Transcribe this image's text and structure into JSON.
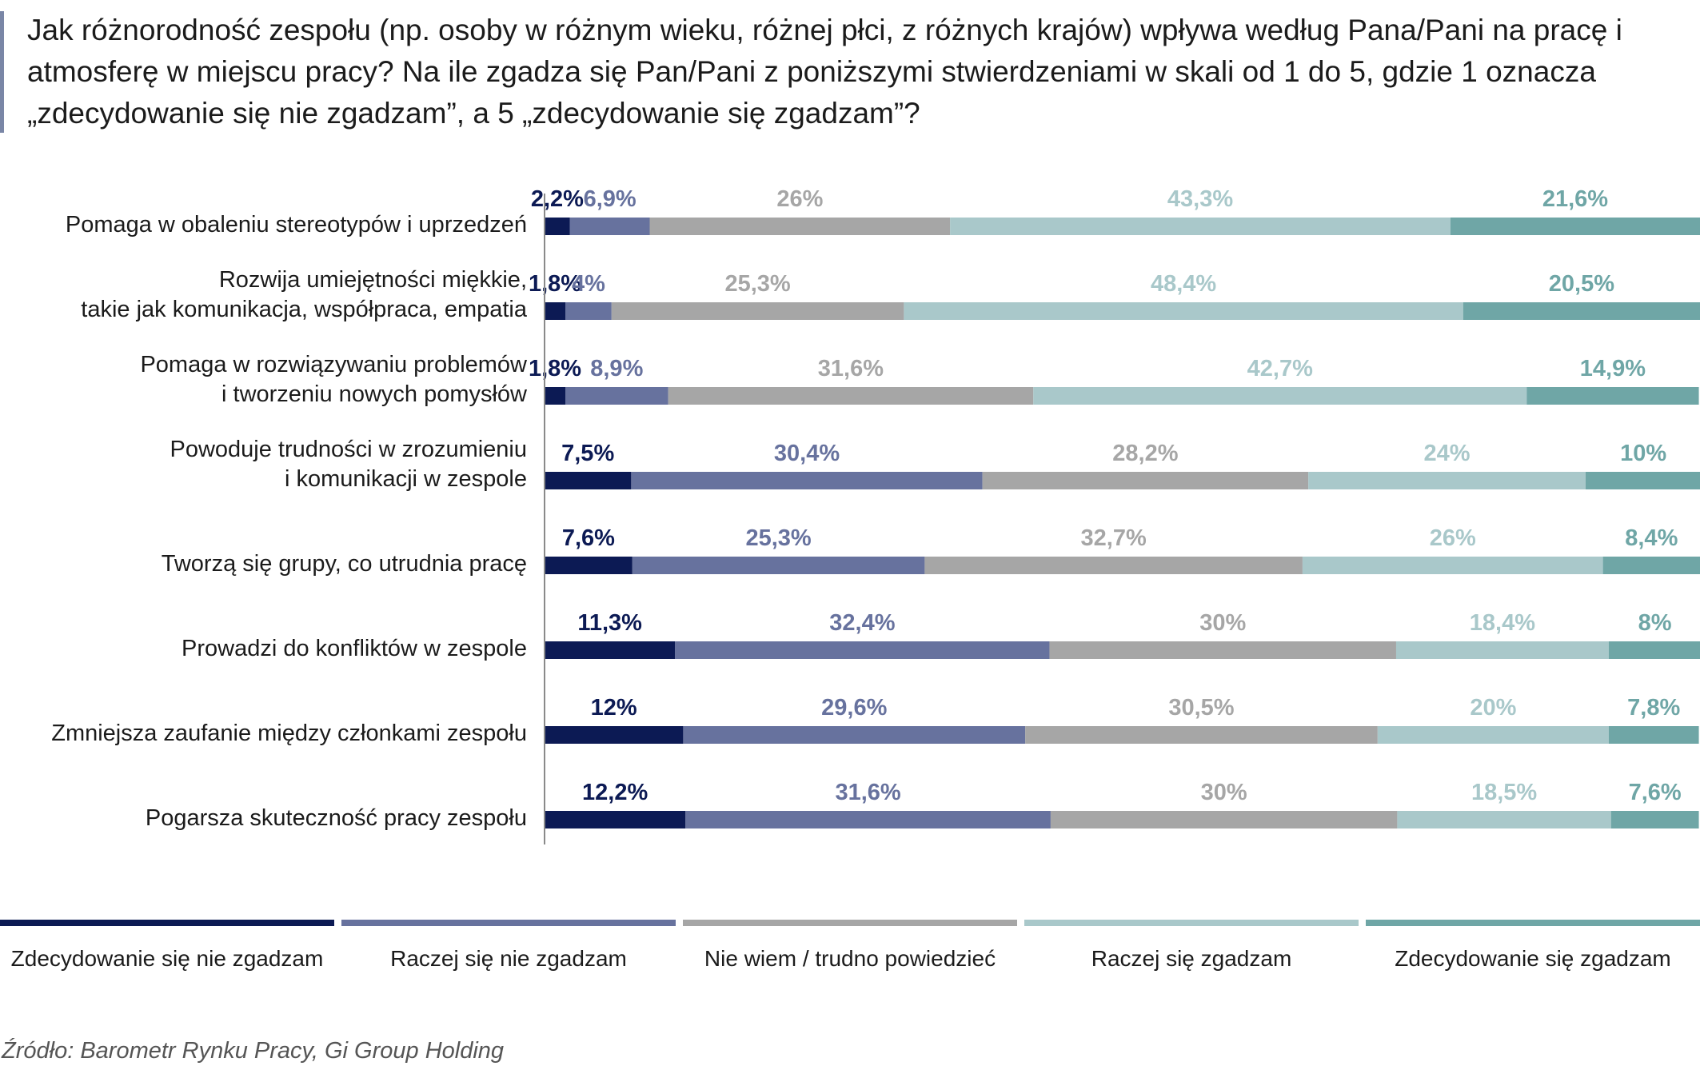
{
  "title": "Jak różnorodność zespołu (np. osoby w różnym wieku, różnej płci, z różnych krajów) wpływa według Pana/Pani na pracę i atmosferę w miejscu pracy? Na ile zgadza się Pan/Pani z poniższymi stwierdzeniami w skali od 1 do 5, gdzie 1 oznacza „zdecydowanie się nie zgadzam”, a 5 „zdecydowanie się zgadzam”?",
  "source": "Źródło: Barometr Rynku Pracy, Gi Group Holding",
  "colors": {
    "strongly_disagree": "#0c1a54",
    "disagree": "#67729e",
    "neutral": "#a6a6a6",
    "agree": "#a9c8ca",
    "strongly_agree": "#6fa6a6"
  },
  "chart_data": {
    "type": "bar",
    "orientation": "horizontal",
    "stacked": true,
    "unit": "%",
    "xlim": [
      0,
      100
    ],
    "grid": false,
    "legend_position": "bottom",
    "categories": [
      "Pomaga w obaleniu stereotypów i uprzedzeń",
      "Rozwija umiejętności miękkie,\ntakie jak komunikacja, współpraca, empatia",
      "Pomaga w rozwiązywaniu problemów\ni tworzeniu nowych pomysłów",
      "Powoduje trudności w zrozumieniu\ni komunikacji w zespole",
      "Tworzą się grupy, co utrudnia pracę",
      "Prowadzi do konfliktów w zespole",
      "Zmniejsza zaufanie między członkami zespołu",
      "Pogarsza skuteczność pracy zespołu"
    ],
    "series": [
      {
        "name": "Zdecydowanie się nie zgadzam",
        "color_key": "strongly_disagree",
        "values": [
          2.2,
          1.8,
          1.8,
          7.5,
          7.6,
          11.3,
          12,
          12.2
        ],
        "labels": [
          "2,2%",
          "1,8%",
          "1,8%",
          "7,5%",
          "7,6%",
          "11,3%",
          "12%",
          "12,2%"
        ]
      },
      {
        "name": "Raczej się nie zgadzam",
        "color_key": "disagree",
        "values": [
          6.9,
          4,
          8.9,
          30.4,
          25.3,
          32.4,
          29.6,
          31.6
        ],
        "labels": [
          "6,9%",
          "4%",
          "8,9%",
          "30,4%",
          "25,3%",
          "32,4%",
          "29,6%",
          "31,6%"
        ]
      },
      {
        "name": "Nie wiem / trudno powiedzieć",
        "color_key": "neutral",
        "values": [
          26,
          25.3,
          31.6,
          28.2,
          32.7,
          30,
          30.5,
          30
        ],
        "labels": [
          "26%",
          "25,3%",
          "31,6%",
          "28,2%",
          "32,7%",
          "30%",
          "30,5%",
          "30%"
        ]
      },
      {
        "name": "Raczej się zgadzam",
        "color_key": "agree",
        "values": [
          43.3,
          48.4,
          42.7,
          24,
          26,
          18.4,
          20,
          18.5
        ],
        "labels": [
          "43,3%",
          "48,4%",
          "42,7%",
          "24%",
          "26%",
          "18,4%",
          "20%",
          "18,5%"
        ]
      },
      {
        "name": "Zdecydowanie się zgadzam",
        "color_key": "strongly_agree",
        "values": [
          21.6,
          20.5,
          14.9,
          10,
          8.4,
          8,
          7.8,
          7.6
        ],
        "labels": [
          "21,6%",
          "20,5%",
          "14,9%",
          "10%",
          "8,4%",
          "8%",
          "7,8%",
          "7,6%"
        ]
      }
    ]
  }
}
